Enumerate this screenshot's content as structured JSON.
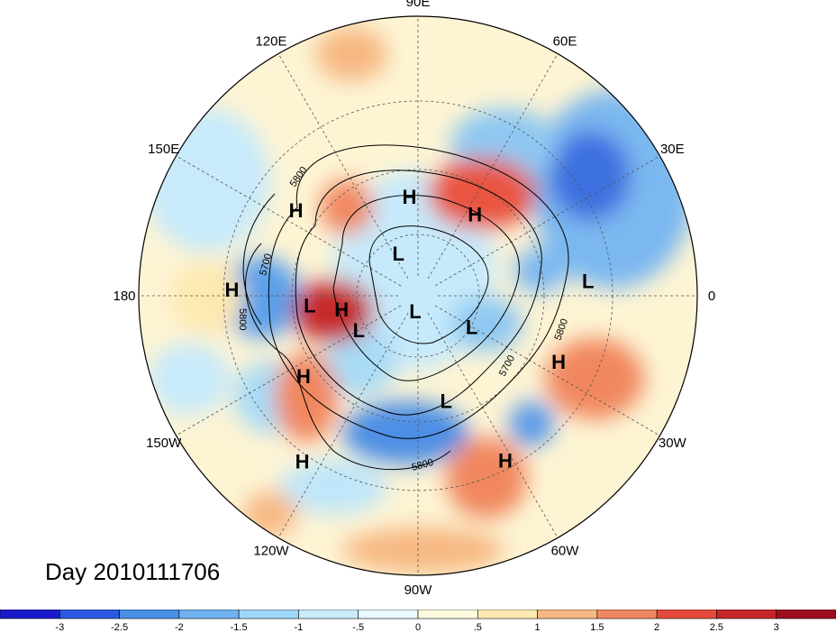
{
  "map": {
    "lon_labels": [
      "90E",
      "60E",
      "30E",
      "0",
      "30W",
      "60W",
      "90W",
      "120W",
      "150W",
      "180",
      "150E",
      "120E"
    ],
    "highs_lows": [
      {
        "type": "H",
        "lon": 95,
        "lat": 58
      },
      {
        "type": "H",
        "lon": 55,
        "lat": 58
      },
      {
        "type": "H",
        "lon": 145,
        "lat": 42
      },
      {
        "type": "H",
        "lon": 178,
        "lat": 30
      },
      {
        "type": "H",
        "lon": -170,
        "lat": 65
      },
      {
        "type": "H",
        "lon": -145,
        "lat": 45
      },
      {
        "type": "H",
        "lon": -125,
        "lat": 25
      },
      {
        "type": "H",
        "lon": -25,
        "lat": 40
      },
      {
        "type": "H",
        "lon": -62,
        "lat": 30
      },
      {
        "type": "L",
        "lon": 5,
        "lat": 35
      },
      {
        "type": "L",
        "lon": 115,
        "lat": 75
      },
      {
        "type": "L",
        "lon": -175,
        "lat": 55
      },
      {
        "type": "L",
        "lon": -150,
        "lat": 68
      },
      {
        "type": "L",
        "lon": -100,
        "lat": 85
      },
      {
        "type": "L",
        "lon": -30,
        "lat": 70
      },
      {
        "type": "L",
        "lon": -75,
        "lat": 55
      }
    ],
    "contour_labels": [
      "5800",
      "5700",
      "5800",
      "5700",
      "5800",
      "5800"
    ]
  },
  "title": "Day 2010111706",
  "colorbar": {
    "colors": [
      "#1a1acc",
      "#2a5ae0",
      "#4a8fe8",
      "#6fb2f0",
      "#9ed6f7",
      "#c9ecfb",
      "#e8f8fe",
      "#fefbe0",
      "#fde9b0",
      "#f7b882",
      "#f1875f",
      "#e44b3c",
      "#c6262a",
      "#9e0d1e"
    ],
    "ticks": [
      "-3",
      "-2.5",
      "-2",
      "-1.5",
      "-1",
      "-.5",
      "0",
      ".5",
      "1",
      "1.5",
      "2",
      "2.5",
      "3"
    ]
  }
}
